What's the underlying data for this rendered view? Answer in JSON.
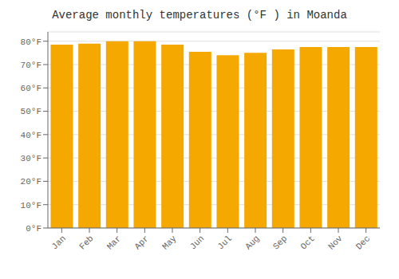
{
  "chart_data": {
    "type": "bar",
    "title": "Average monthly temperatures (°F ) in Moanda",
    "categories": [
      "Jan",
      "Feb",
      "Mar",
      "Apr",
      "May",
      "Jun",
      "Jul",
      "Aug",
      "Sep",
      "Oct",
      "Nov",
      "Dec"
    ],
    "values": [
      78.5,
      79.0,
      80.0,
      80.0,
      78.5,
      75.5,
      74.0,
      75.0,
      76.5,
      77.5,
      77.5,
      77.5
    ],
    "color": "#F5A800",
    "ylim": [
      0,
      84
    ],
    "yticks": [
      {
        "value": 0,
        "label": "0°F"
      },
      {
        "value": 10,
        "label": "10°F"
      },
      {
        "value": 20,
        "label": "20°F"
      },
      {
        "value": 30,
        "label": "30°F"
      },
      {
        "value": 40,
        "label": "40°F"
      },
      {
        "value": 50,
        "label": "50°F"
      },
      {
        "value": 60,
        "label": "60°F"
      },
      {
        "value": 70,
        "label": "70°F"
      },
      {
        "value": 80,
        "label": "80°F"
      }
    ],
    "grid": true
  }
}
